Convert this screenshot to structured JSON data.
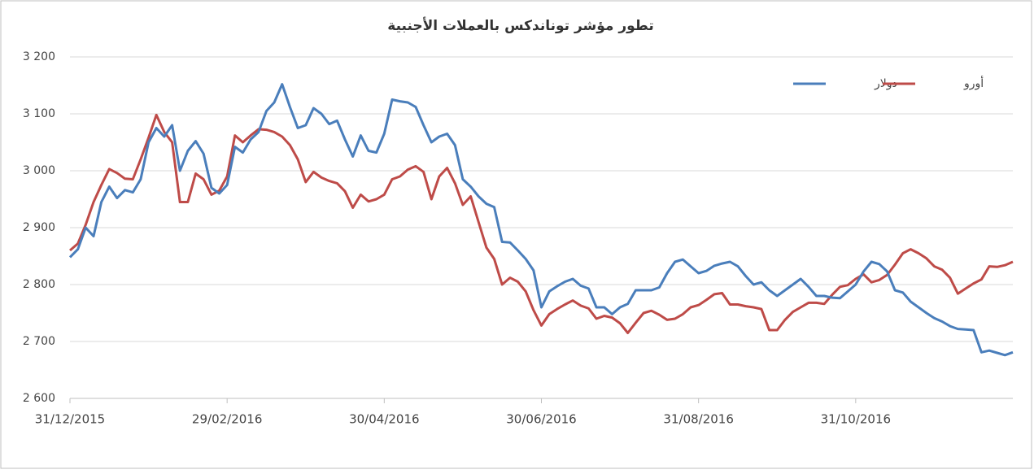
{
  "chart_data": {
    "type": "line",
    "title": "تطور مؤشر توناندكس بالعملات الأجنبية",
    "categories": [
      "31/12/2015",
      null,
      null,
      null,
      null,
      null,
      null,
      null,
      null,
      null,
      null,
      null,
      null,
      null,
      null,
      null,
      null,
      null,
      null,
      null,
      "29/02/2016",
      null,
      null,
      null,
      null,
      null,
      null,
      null,
      null,
      null,
      null,
      null,
      null,
      null,
      null,
      null,
      null,
      null,
      null,
      null,
      "30/04/2016",
      null,
      null,
      null,
      null,
      null,
      null,
      null,
      null,
      null,
      null,
      null,
      null,
      null,
      null,
      null,
      null,
      null,
      null,
      null,
      "30/06/2016",
      null,
      null,
      null,
      null,
      null,
      null,
      null,
      null,
      null,
      null,
      null,
      null,
      null,
      null,
      null,
      null,
      null,
      null,
      null,
      "31/08/2016",
      null,
      null,
      null,
      null,
      null,
      null,
      null,
      null,
      null,
      null,
      null,
      null,
      null,
      null,
      null,
      null,
      null,
      null,
      null,
      "31/10/2016",
      null,
      null,
      null,
      null,
      null,
      null,
      null,
      null,
      null,
      null,
      null,
      null,
      null,
      null,
      null,
      null,
      null,
      null,
      null,
      null
    ],
    "series": [
      {
        "name": "دولار",
        "color": "#4a7ebb",
        "values": [
          2848,
          2862,
          2900,
          2885,
          2945,
          2972,
          2952,
          2966,
          2962,
          2985,
          3050,
          3075,
          3060,
          3080,
          3000,
          3035,
          3052,
          3030,
          2970,
          2960,
          2975,
          3042,
          3032,
          3055,
          3068,
          3105,
          3120,
          3152,
          3112,
          3075,
          3080,
          3110,
          3100,
          3082,
          3088,
          3055,
          3025,
          3062,
          3035,
          3032,
          3065,
          3125,
          3122,
          3120,
          3112,
          3080,
          3050,
          3060,
          3065,
          3045,
          2985,
          2972,
          2955,
          2942,
          2936,
          2875,
          2874,
          2860,
          2845,
          2825,
          2760,
          2788,
          2797,
          2805,
          2810,
          2798,
          2793,
          2760,
          2760,
          2748,
          2760,
          2766,
          2790,
          2790,
          2790,
          2795,
          2820,
          2840,
          2844,
          2832,
          2820,
          2824,
          2833,
          2837,
          2840,
          2832,
          2815,
          2800,
          2804,
          2790,
          2780,
          2790,
          2800,
          2810,
          2796,
          2780,
          2780,
          2777,
          2776,
          2788,
          2800,
          2823,
          2840,
          2836,
          2823,
          2790,
          2786,
          2770,
          2760,
          2750,
          2741,
          2735,
          2727,
          2722,
          2721,
          2720,
          2681,
          2684,
          2680,
          2676,
          2681
        ]
      },
      {
        "name": "أورو",
        "color": "#be4b48",
        "values": [
          2860,
          2872,
          2905,
          2945,
          2975,
          3003,
          2996,
          2986,
          2985,
          3020,
          3058,
          3098,
          3068,
          3050,
          2945,
          2945,
          2995,
          2985,
          2958,
          2965,
          2990,
          3062,
          3050,
          3062,
          3073,
          3072,
          3068,
          3060,
          3045,
          3020,
          2980,
          2998,
          2988,
          2982,
          2978,
          2964,
          2935,
          2958,
          2946,
          2950,
          2958,
          2985,
          2990,
          3002,
          3008,
          2998,
          2950,
          2990,
          3005,
          2978,
          2940,
          2955,
          2910,
          2865,
          2845,
          2800,
          2812,
          2805,
          2788,
          2755,
          2728,
          2748,
          2757,
          2765,
          2772,
          2763,
          2758,
          2740,
          2745,
          2742,
          2732,
          2715,
          2733,
          2750,
          2754,
          2747,
          2738,
          2740,
          2748,
          2760,
          2764,
          2773,
          2783,
          2785,
          2765,
          2765,
          2762,
          2760,
          2757,
          2720,
          2720,
          2738,
          2752,
          2760,
          2768,
          2768,
          2766,
          2782,
          2796,
          2799,
          2810,
          2818,
          2804,
          2808,
          2817,
          2835,
          2855,
          2862,
          2855,
          2846,
          2832,
          2826,
          2812,
          2784,
          2793,
          2802,
          2809,
          2832,
          2831,
          2834,
          2840
        ]
      }
    ],
    "ylim": [
      2600,
      3200
    ],
    "yticks": [
      {
        "value": 2600,
        "label": "2 600"
      },
      {
        "value": 2700,
        "label": "2 700"
      },
      {
        "value": 2800,
        "label": "2 800"
      },
      {
        "value": 2900,
        "label": "2 900"
      },
      {
        "value": 3000,
        "label": "3 000"
      },
      {
        "value": 3100,
        "label": "3 100"
      },
      {
        "value": 3200,
        "label": "3 200"
      }
    ],
    "grid": true
  }
}
